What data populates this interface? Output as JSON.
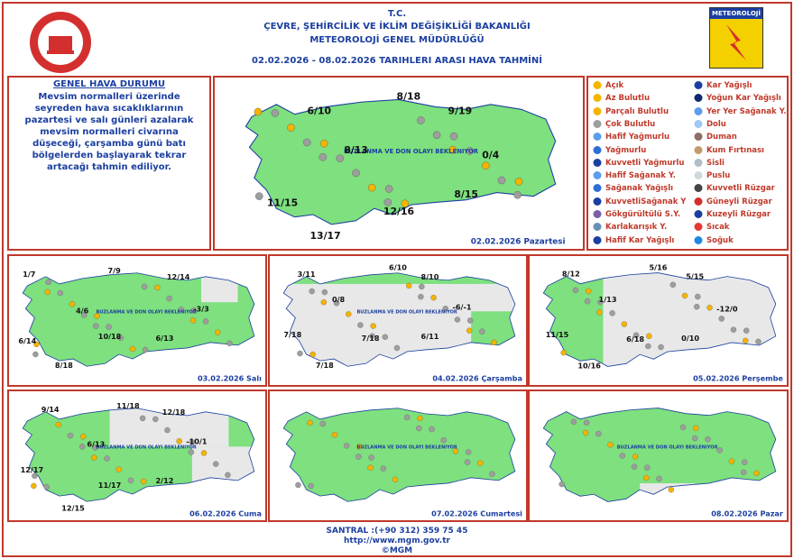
{
  "header": {
    "org": "T.C.",
    "ministry": "ÇEVRE, ŞEHİRCİLİK VE İKLİM DEĞİŞİKLİĞİ BAKANLIĞI",
    "directorate": "METEOROLOJİ GENEL MÜDÜRLÜĞÜ",
    "period": "02.02.2026 - 08.02.2026 TARIHLERI ARASI HAVA TAHMİNİ",
    "logo_label": "METEOROLOJİ"
  },
  "summary": {
    "title": "GENEL HAVA DURUMU",
    "text": "Mevsim normalleri üzerinde seyreden hava sıcaklıklarının pazartesi ve salı günleri azalarak mevsim normalleri civarına düşeceği, çarşamba günü batı bölgelerden başlayarak tekrar artacağı tahmin ediliyor."
  },
  "legend": {
    "items": [
      "Açık",
      "Az Bulutlu",
      "Parçalı Bulutlu",
      "Çok Bulutlu",
      "Hafif Yağmurlu",
      "Yağmurlu",
      "Kuvvetli Yağmurlu",
      "Hafif Sağanak Y.",
      "Sağanak Yağışlı",
      "KuvvetliSağanak Y",
      "Gökgürültülü S.Y.",
      "Karlakarışık Y.",
      "Hafif Kar Yağışlı",
      "Kar Yağışlı",
      "Yoğun Kar Yağışlı",
      "Yer Yer Sağanak Y.",
      "Dolu",
      "Duman",
      "Kum Fırtınası",
      "Sisli",
      "Puslu",
      "Kuvvetli Rüzgar",
      "Güneyli Rüzgar",
      "Kuzeyli Rüzgar",
      "Sıcak",
      "Soğuk"
    ]
  },
  "maps": [
    {
      "date": "02.02.2026 Pazartesi",
      "note": "BUZLANMA VE DON OLAYI BEKLENIYOR",
      "temps": [
        "8/18",
        "6/10",
        "9/19",
        "8/13",
        "0/4",
        "11/15",
        "8/15",
        "12/16",
        "13/17"
      ]
    },
    {
      "date": "03.02.2026 Salı",
      "note": "BUZLANMA VE DON OLAYI BEKLENIYOR",
      "temps": [
        "1/7",
        "7/9",
        "12/14",
        "4/6",
        "-3/3",
        "6/14",
        "10/18",
        "6/13",
        "8/18"
      ]
    },
    {
      "date": "04.02.2026 Çarşamba",
      "note": "BUZLANMA VE DON OLAYI BEKLENIYOR",
      "temps": [
        "3/11",
        "6/10",
        "8/10",
        "0/8",
        "-6/-1",
        "7/18",
        "7/18",
        "6/11",
        "7/18"
      ]
    },
    {
      "date": "05.02.2026 Perşembe",
      "temps": [
        "8/12",
        "5/16",
        "5/15",
        "1/13",
        "-12/0",
        "11/15",
        "6/18",
        "0/10",
        "10/16"
      ]
    },
    {
      "date": "06.02.2026 Cuma",
      "note": "BUZLANMA VE DON OLAYI BEKLENIYOR",
      "temps": [
        "9/14",
        "11/18",
        "12/18",
        "6/13",
        "-10/1",
        "12/17",
        "11/17",
        "2/12",
        "12/15"
      ]
    },
    {
      "date": "07.02.2026 Cumartesi",
      "note": "BUZLANMA VE DON OLAYI BEKLENIYOR",
      "temps": []
    },
    {
      "date": "08.02.2026 Pazar",
      "note": "BUZLANMA VE DON OLAYI BEKLENIYOR",
      "temps": []
    }
  ],
  "footer": {
    "phone": "SANTRAL :(+90 312) 359 75 45",
    "url": "http://www.mgm.gov.tr",
    "copyright": "©MGM"
  }
}
